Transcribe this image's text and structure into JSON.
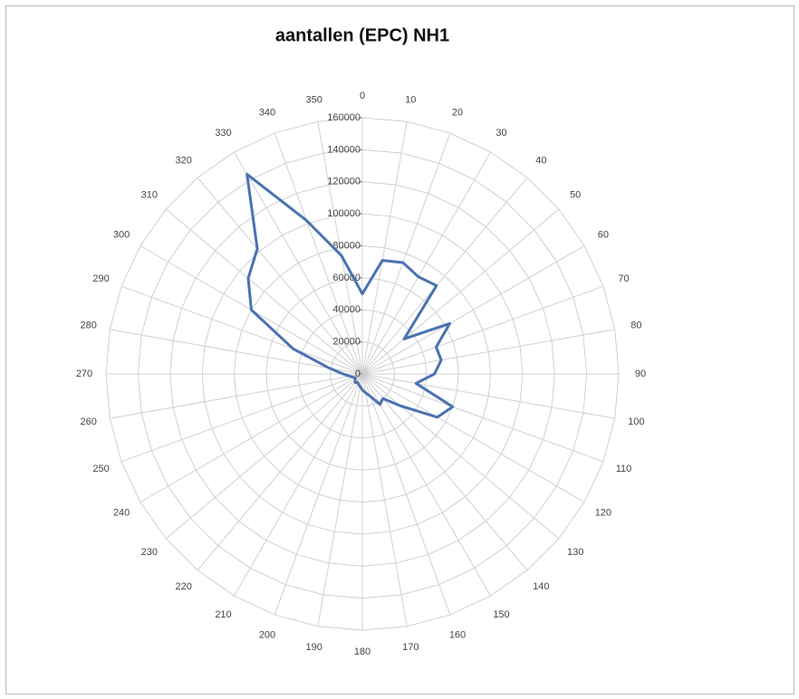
{
  "chart_data": {
    "type": "radar",
    "title": "aantallen (EPC) NH1",
    "categories": [
      "0",
      "10",
      "20",
      "30",
      "40",
      "50",
      "60",
      "70",
      "80",
      "90",
      "100",
      "110",
      "120",
      "130",
      "140",
      "150",
      "160",
      "170",
      "180",
      "190",
      "200",
      "210",
      "220",
      "230",
      "240",
      "250",
      "260",
      "270",
      "280",
      "290",
      "300",
      "310",
      "320",
      "330",
      "340",
      "350"
    ],
    "series": [
      {
        "color": "#4a72b0",
        "values": [
          50000,
          72000,
          74000,
          70000,
          72000,
          34000,
          63000,
          49000,
          50000,
          45000,
          34000,
          60000,
          54000,
          31000,
          20000,
          22000,
          15000,
          12000,
          10000,
          8000,
          7000,
          6000,
          7000,
          6000,
          5000,
          6000,
          8000,
          12000,
          21000,
          46000,
          80000,
          93000,
          102000,
          144000,
          102000,
          75000
        ]
      }
    ],
    "rlim": [
      0,
      160000
    ],
    "rticks": [
      0,
      20000,
      40000,
      60000,
      80000,
      100000,
      120000,
      140000,
      160000
    ],
    "grid": true
  }
}
